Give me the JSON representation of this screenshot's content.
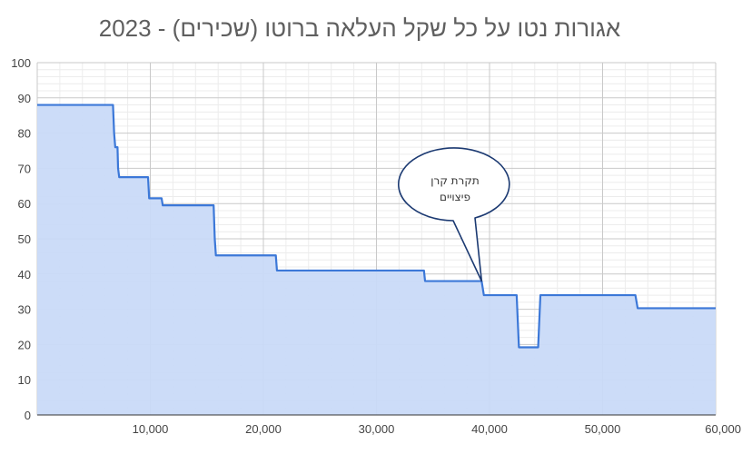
{
  "chart_data": {
    "type": "area",
    "title": "אגורות נטו על כל שקל העלאה ברוטו (שכירים) - 2023",
    "xlabel": "",
    "ylabel": "",
    "xlim": [
      0,
      60000
    ],
    "ylim": [
      0,
      100
    ],
    "x_ticks": [
      {
        "value": 10000,
        "label": "10,000"
      },
      {
        "value": 20000,
        "label": "20,000"
      },
      {
        "value": 30000,
        "label": "30,000"
      },
      {
        "value": 40000,
        "label": "40,000"
      },
      {
        "value": 50000,
        "label": "50,000"
      },
      {
        "value": 60000,
        "label": "60,000"
      }
    ],
    "y_ticks": [
      {
        "value": 0,
        "label": "0"
      },
      {
        "value": 10,
        "label": "10"
      },
      {
        "value": 20,
        "label": "20"
      },
      {
        "value": 30,
        "label": "30"
      },
      {
        "value": 40,
        "label": "40"
      },
      {
        "value": 50,
        "label": "50"
      },
      {
        "value": 60,
        "label": "60"
      },
      {
        "value": 70,
        "label": "70"
      },
      {
        "value": 80,
        "label": "80"
      },
      {
        "value": 90,
        "label": "90"
      },
      {
        "value": 100,
        "label": "100"
      }
    ],
    "grid": true,
    "legend": "none",
    "colors": {
      "line": "#3c78d8",
      "fill": "#c9daf8"
    },
    "series": [
      {
        "x": [
          0,
          6700,
          6800,
          6900,
          7100,
          7150,
          7250,
          7350,
          9800,
          9900,
          10100,
          11000,
          11100,
          15600,
          15700,
          15800,
          21100,
          21200,
          34200,
          34300,
          39300,
          39500,
          42400,
          42600,
          44300,
          44500,
          52900,
          53100,
          60000
        ],
        "y": [
          88,
          88,
          80,
          76,
          76,
          70,
          67.5,
          67.5,
          67.5,
          61.5,
          61.5,
          61.5,
          59.5,
          59.5,
          50,
          45.3,
          45.3,
          41,
          41,
          38,
          38,
          34,
          34,
          19.2,
          19.2,
          34,
          34,
          30.3,
          30.3
        ]
      }
    ],
    "annotations": [
      {
        "line1": "תקרת קרן",
        "line2": "פיצויים",
        "x": 39300,
        "y": 38
      }
    ]
  }
}
